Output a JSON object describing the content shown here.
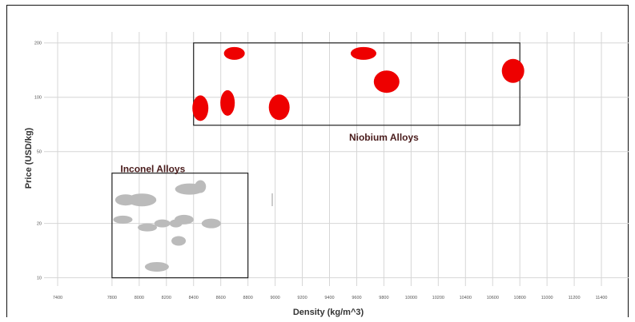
{
  "chart_data": {
    "type": "scatter",
    "title": "",
    "xlabel": "Density (kg/m^3)",
    "ylabel": "Price (USD/kg)",
    "x_scale": "linear",
    "y_scale": "log",
    "xlim": [
      7300,
      11600
    ],
    "ylim": [
      9,
      230
    ],
    "x_ticks": [
      7400,
      7800,
      8000,
      8200,
      8400,
      8600,
      8800,
      9000,
      9200,
      9400,
      9600,
      9800,
      10000,
      10200,
      10400,
      10600,
      10800,
      11000,
      11200,
      11400
    ],
    "x_tick_labels": [
      "7400",
      "7800",
      "8000",
      "8200",
      "8400",
      "8600",
      "8800",
      "9000",
      "9200",
      "9400",
      "9600",
      "9800",
      "10000",
      "10200",
      "10400",
      "10600",
      "10800",
      "11000",
      "11200",
      "11400"
    ],
    "y_ticks": [
      10,
      20,
      50,
      100,
      200
    ],
    "y_tick_labels": [
      "10",
      "20",
      "50",
      "100",
      "200"
    ],
    "grid": true,
    "series": [
      {
        "name": "Niobium Alloys",
        "color": "#ee0000",
        "points": [
          {
            "x": 8450,
            "y": 87,
            "rx": 10,
            "ry": 16
          },
          {
            "x": 8650,
            "y": 93,
            "rx": 9,
            "ry": 16
          },
          {
            "x": 8700,
            "y": 175,
            "rx": 13,
            "ry": 8
          },
          {
            "x": 9030,
            "y": 88,
            "rx": 13,
            "ry": 16
          },
          {
            "x": 9650,
            "y": 175,
            "rx": 16,
            "ry": 8
          },
          {
            "x": 9820,
            "y": 122,
            "rx": 16,
            "ry": 14
          },
          {
            "x": 10750,
            "y": 140,
            "rx": 14,
            "ry": 15
          }
        ],
        "box": {
          "x_range": [
            8400,
            10800
          ],
          "y_range": [
            70,
            200
          ]
        }
      },
      {
        "name": "Inconel Alloys",
        "color": "#bbbbbb",
        "points": [
          {
            "x": 7900,
            "y": 27,
            "rx": 13,
            "ry": 7
          },
          {
            "x": 8020,
            "y": 27,
            "rx": 18,
            "ry": 8
          },
          {
            "x": 7880,
            "y": 21,
            "rx": 12,
            "ry": 5
          },
          {
            "x": 8060,
            "y": 19,
            "rx": 12,
            "ry": 5
          },
          {
            "x": 8170,
            "y": 20,
            "rx": 10,
            "ry": 5
          },
          {
            "x": 8370,
            "y": 31,
            "rx": 18,
            "ry": 7
          },
          {
            "x": 8450,
            "y": 32,
            "rx": 7,
            "ry": 8
          },
          {
            "x": 8330,
            "y": 21,
            "rx": 12,
            "ry": 6
          },
          {
            "x": 8270,
            "y": 20,
            "rx": 8,
            "ry": 5
          },
          {
            "x": 8530,
            "y": 20,
            "rx": 12,
            "ry": 6
          },
          {
            "x": 8290,
            "y": 16,
            "rx": 9,
            "ry": 6
          },
          {
            "x": 8130,
            "y": 11.5,
            "rx": 15,
            "ry": 6
          }
        ],
        "box": {
          "x_range": [
            7800,
            8800
          ],
          "y_range": [
            10,
            38
          ]
        }
      }
    ],
    "annotations": [
      {
        "text": "Niobium Alloys",
        "x": 9800,
        "y": 60
      },
      {
        "text": "Inconel Alloys",
        "x": 8100,
        "y": 40
      }
    ]
  }
}
